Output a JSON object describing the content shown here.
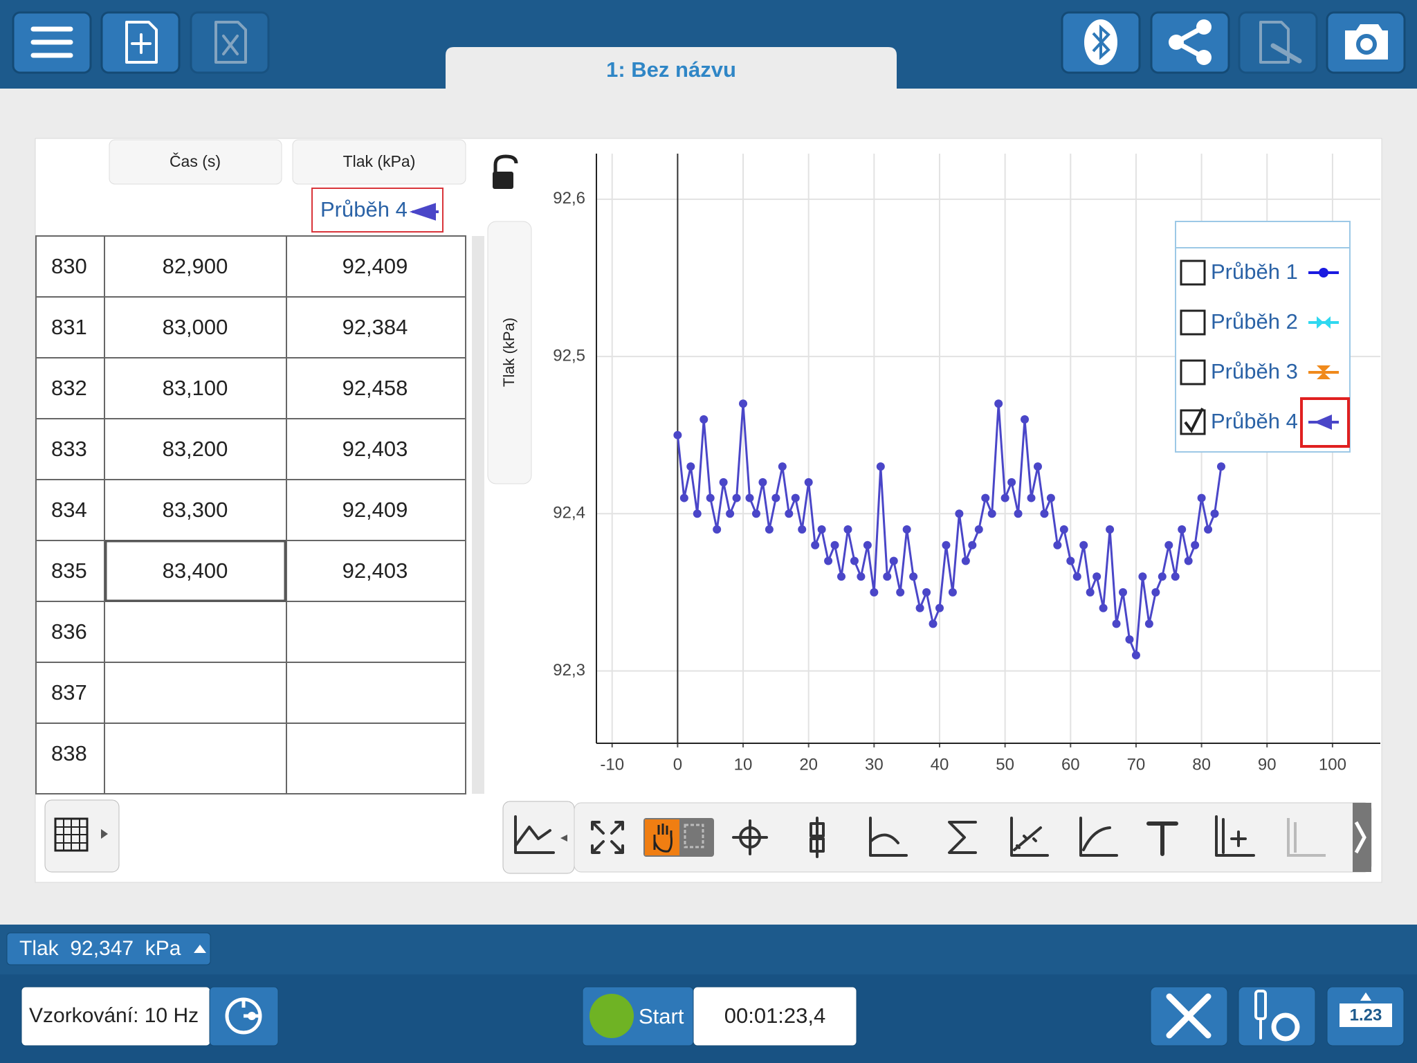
{
  "toolbar": {
    "tab_title": "1: Bez názvu"
  },
  "table": {
    "headers": [
      "Čas (s)",
      "Tlak (kPa)"
    ],
    "run_label": "Průběh 4",
    "rows": [
      [
        "830",
        "82,900",
        "92,409"
      ],
      [
        "831",
        "83,000",
        "92,384"
      ],
      [
        "832",
        "83,100",
        "92,458"
      ],
      [
        "833",
        "83,200",
        "92,403"
      ],
      [
        "834",
        "83,300",
        "92,409"
      ],
      [
        "835",
        "83,400",
        "92,403"
      ],
      [
        "836"
      ],
      [
        "837"
      ],
      [
        "838"
      ]
    ]
  },
  "side_label": "Tlak (kPa)",
  "chart_data": {
    "type": "line",
    "x": [
      0,
      1,
      2,
      3,
      4,
      5,
      6,
      7,
      8,
      9,
      10,
      11,
      12,
      13,
      14,
      15,
      16,
      17,
      18,
      19,
      20,
      21,
      22,
      23,
      24,
      25,
      26,
      27,
      28,
      29,
      30,
      31,
      32,
      33,
      34,
      35,
      36,
      37,
      38,
      39,
      40,
      41,
      42,
      43,
      44,
      45,
      46,
      47,
      48,
      49,
      50,
      51,
      52,
      53,
      54,
      55,
      56,
      57,
      58,
      59,
      60,
      61,
      62,
      63,
      64,
      65,
      66,
      67,
      68,
      69,
      70,
      71,
      72,
      73,
      74,
      75,
      76,
      77,
      78,
      79,
      80,
      81,
      82,
      83
    ],
    "series": [
      {
        "name": "Průběh 4",
        "color": "#4a46c8",
        "values": [
          92.45,
          92.41,
          92.43,
          92.4,
          92.46,
          92.41,
          92.39,
          92.42,
          92.4,
          92.41,
          92.47,
          92.41,
          92.4,
          92.42,
          92.39,
          92.41,
          92.43,
          92.4,
          92.41,
          92.39,
          92.42,
          92.38,
          92.39,
          92.37,
          92.38,
          92.36,
          92.39,
          92.37,
          92.36,
          92.38,
          92.35,
          92.43,
          92.36,
          92.37,
          92.35,
          92.39,
          92.36,
          92.34,
          92.35,
          92.33,
          92.34,
          92.38,
          92.35,
          92.4,
          92.37,
          92.38,
          92.39,
          92.41,
          92.4,
          92.47,
          92.41,
          92.42,
          92.4,
          92.46,
          92.41,
          92.43,
          92.4,
          92.41,
          92.38,
          92.39,
          92.37,
          92.36,
          92.38,
          92.35,
          92.36,
          92.34,
          92.39,
          92.33,
          92.35,
          92.32,
          92.31,
          92.36,
          92.33,
          92.35,
          92.36,
          92.38,
          92.36,
          92.39,
          92.37,
          92.38,
          92.41,
          92.39,
          92.4,
          92.43
        ]
      }
    ],
    "xlim": [
      -12.4,
      107.3
    ],
    "ylim": [
      92.254,
      92.629
    ],
    "xticks": [
      -10,
      0,
      10,
      20,
      30,
      40,
      50,
      60,
      70,
      80,
      90,
      100
    ],
    "yticks": [
      {
        "value": 92.3,
        "label": "92,3"
      },
      {
        "value": 92.4,
        "label": "92,4"
      },
      {
        "value": 92.5,
        "label": "92,5"
      },
      {
        "value": 92.6,
        "label": "92,6"
      }
    ],
    "grid": true,
    "legend": "upper right",
    "legend_entries": [
      {
        "name": "Průběh 1",
        "color": "#1a1ae0",
        "checked": false
      },
      {
        "name": "Průběh 2",
        "color": "#2fd8f0",
        "checked": false
      },
      {
        "name": "Průběh 3",
        "color": "#f08a1c",
        "checked": false
      },
      {
        "name": "Průběh 4",
        "color": "#4a46c8",
        "checked": true
      }
    ]
  },
  "status": {
    "reading": "Tlak  92,347  kPa"
  },
  "footer": {
    "sampling": "Vzorkování: 10 Hz",
    "start": "Start",
    "timer": "00:01:23,4",
    "meter_icon": "1.23"
  }
}
